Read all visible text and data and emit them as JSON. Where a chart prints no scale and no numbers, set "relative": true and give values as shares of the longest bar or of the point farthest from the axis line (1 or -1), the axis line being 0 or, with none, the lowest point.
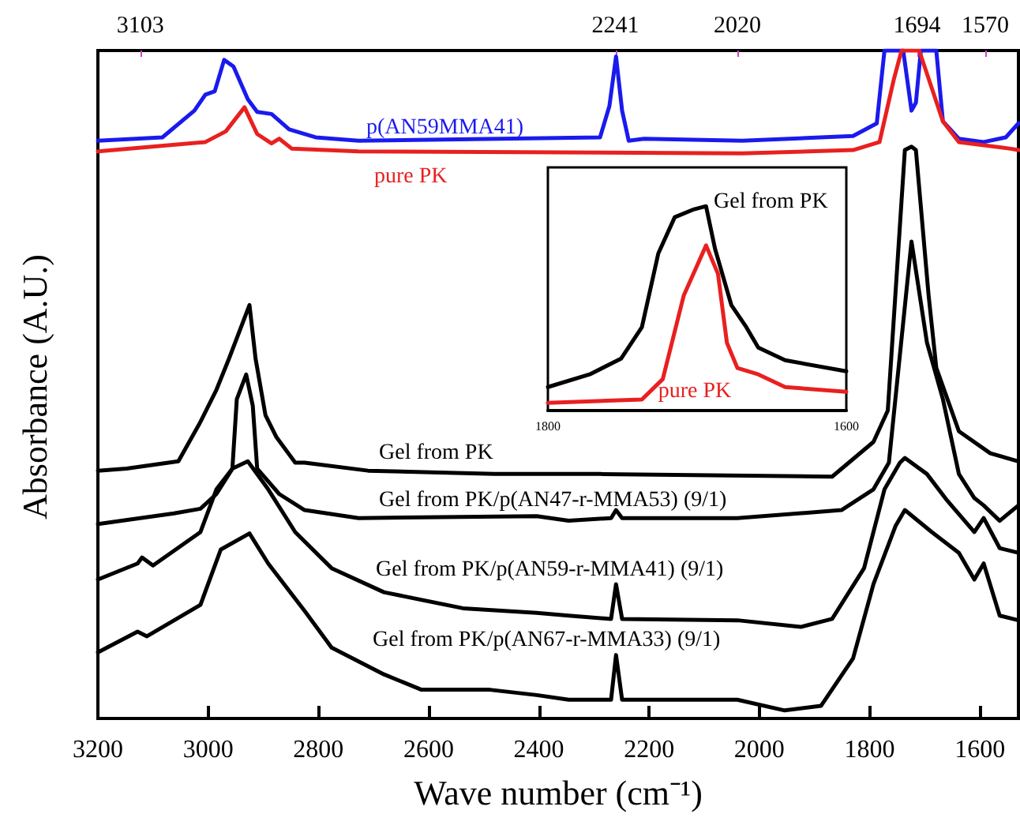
{
  "chart_data": [
    {
      "type": "line",
      "relative": true,
      "marker": "none",
      "xlabel": "Wave number (cm⁻¹)",
      "ylabel": "Absorbance (A.U.)",
      "xlim": [
        3200,
        1530
      ],
      "xticks": [
        3200,
        3000,
        2800,
        2600,
        2400,
        2200,
        2000,
        1800,
        1600
      ],
      "x2lim": [
        3180,
        1510
      ],
      "x2ticks": [
        3103,
        2241,
        2020,
        1694,
        1570
      ],
      "series": [
        {
          "name": "p(AN59MMA41)",
          "color": "#1a1aee",
          "x": [
            3200,
            3083,
            3025,
            3005,
            2988,
            2971,
            2954,
            2928,
            2911,
            2885,
            2853,
            2805,
            2727,
            2289,
            2272,
            2260,
            2249,
            2237,
            2209,
            2031,
            1830,
            1787,
            1773,
            1739,
            1724,
            1716,
            1707,
            1679,
            1667,
            1638,
            1593,
            1553,
            1530
          ],
          "values": [
            0.865,
            0.87,
            0.91,
            0.934,
            0.939,
            0.986,
            0.976,
            0.927,
            0.908,
            0.905,
            0.882,
            0.87,
            0.865,
            0.87,
            0.917,
            0.991,
            0.91,
            0.865,
            0.868,
            0.865,
            0.872,
            0.891,
            1.0,
            1.0,
            0.91,
            0.922,
            1.0,
            1.0,
            0.894,
            0.868,
            0.863,
            0.87,
            0.891
          ]
        },
        {
          "name": "pure PK",
          "color": "#e82020",
          "x": [
            3200,
            3005,
            2968,
            2934,
            2911,
            2885,
            2871,
            2848,
            2727,
            2031,
            1830,
            1782,
            1756,
            1742,
            1710,
            1667,
            1638,
            1544,
            1530
          ],
          "values": [
            0.849,
            0.863,
            0.879,
            0.915,
            0.875,
            0.861,
            0.868,
            0.853,
            0.849,
            0.846,
            0.851,
            0.863,
            0.957,
            1.0,
            1.0,
            0.894,
            0.863,
            0.853,
            0.851
          ]
        },
        {
          "name": "Gel from PK",
          "color": "#000000",
          "x": [
            3200,
            3148,
            3054,
            3014,
            2985,
            2962,
            2925,
            2914,
            2896,
            2876,
            2842,
            2825,
            2710,
            2481,
            2289,
            1868,
            1793,
            1767,
            1736,
            1724,
            1716,
            1693,
            1679,
            1638,
            1581,
            1530
          ],
          "values": [
            0.371,
            0.374,
            0.385,
            0.444,
            0.492,
            0.539,
            0.619,
            0.539,
            0.454,
            0.421,
            0.383,
            0.383,
            0.371,
            0.366,
            0.366,
            0.362,
            0.414,
            0.461,
            0.851,
            0.856,
            0.851,
            0.634,
            0.525,
            0.43,
            0.397,
            0.385
          ]
        },
        {
          "name": "Gel from PK/p(AN47-r-MMA53) (9/1)",
          "color": "#000000",
          "x": [
            3200,
            3062,
            3014,
            2985,
            2956,
            2948,
            2931,
            2919,
            2911,
            2871,
            2825,
            2727,
            2404,
            2346,
            2269,
            2260,
            2249,
            2040,
            1851,
            1793,
            1765,
            1724,
            1696,
            1667,
            1638,
            1610,
            1593,
            1564,
            1530
          ],
          "values": [
            0.291,
            0.307,
            0.314,
            0.336,
            0.374,
            0.478,
            0.515,
            0.468,
            0.374,
            0.336,
            0.312,
            0.3,
            0.303,
            0.296,
            0.3,
            0.312,
            0.3,
            0.3,
            0.312,
            0.343,
            0.383,
            0.714,
            0.563,
            0.478,
            0.366,
            0.33,
            0.319,
            0.296,
            0.319
          ]
        },
        {
          "name": "Gel from PK/p(AN59-r-MMA41) (9/1)",
          "color": "#000000",
          "x": [
            3200,
            3128,
            3120,
            3100,
            3014,
            2985,
            2956,
            2928,
            2891,
            2842,
            2776,
            2681,
            2538,
            2404,
            2346,
            2269,
            2260,
            2249,
            2040,
            1925,
            1868,
            1810,
            1773,
            1745,
            1736,
            1696,
            1659,
            1610,
            1593,
            1564,
            1530
          ],
          "values": [
            0.208,
            0.232,
            0.241,
            0.229,
            0.279,
            0.343,
            0.374,
            0.385,
            0.343,
            0.279,
            0.225,
            0.189,
            0.165,
            0.158,
            0.154,
            0.149,
            0.201,
            0.149,
            0.147,
            0.137,
            0.149,
            0.225,
            0.343,
            0.383,
            0.39,
            0.366,
            0.326,
            0.279,
            0.3,
            0.255,
            0.248
          ]
        },
        {
          "name": "Gel from PK/p(AN67-r-MMA33) (9/1)",
          "color": "#000000",
          "x": [
            3200,
            3128,
            3111,
            3014,
            2977,
            2925,
            2891,
            2825,
            2776,
            2681,
            2613,
            2489,
            2404,
            2346,
            2269,
            2260,
            2249,
            2040,
            1954,
            1888,
            1830,
            1793,
            1753,
            1736,
            1687,
            1638,
            1610,
            1593,
            1564,
            1530
          ],
          "values": [
            0.099,
            0.13,
            0.123,
            0.17,
            0.253,
            0.277,
            0.232,
            0.161,
            0.106,
            0.066,
            0.043,
            0.043,
            0.035,
            0.028,
            0.028,
            0.095,
            0.028,
            0.028,
            0.012,
            0.019,
            0.09,
            0.201,
            0.288,
            0.312,
            0.279,
            0.248,
            0.208,
            0.232,
            0.154,
            0.147
          ]
        }
      ]
    },
    {
      "type": "line",
      "relative": true,
      "marker": "none",
      "xlim": [
        1800,
        1600
      ],
      "xticks": [
        1800,
        1600
      ],
      "series": [
        {
          "name": "Gel from PK",
          "color": "#000000",
          "x": [
            1800,
            1772,
            1751,
            1737,
            1726,
            1715,
            1702,
            1694,
            1688,
            1677,
            1667,
            1659,
            1641,
            1600
          ],
          "values": [
            0.115,
            0.177,
            0.254,
            0.408,
            0.769,
            0.946,
            0.985,
            1.0,
            0.792,
            0.515,
            0.408,
            0.308,
            0.246,
            0.192
          ]
        },
        {
          "name": "pure PK",
          "color": "#e82020",
          "x": [
            1800,
            1737,
            1723,
            1709,
            1694,
            1686,
            1680,
            1673,
            1659,
            1641,
            1600
          ],
          "values": [
            0.038,
            0.054,
            0.154,
            0.562,
            0.808,
            0.669,
            0.331,
            0.208,
            0.177,
            0.115,
            0.092
          ]
        }
      ]
    }
  ]
}
